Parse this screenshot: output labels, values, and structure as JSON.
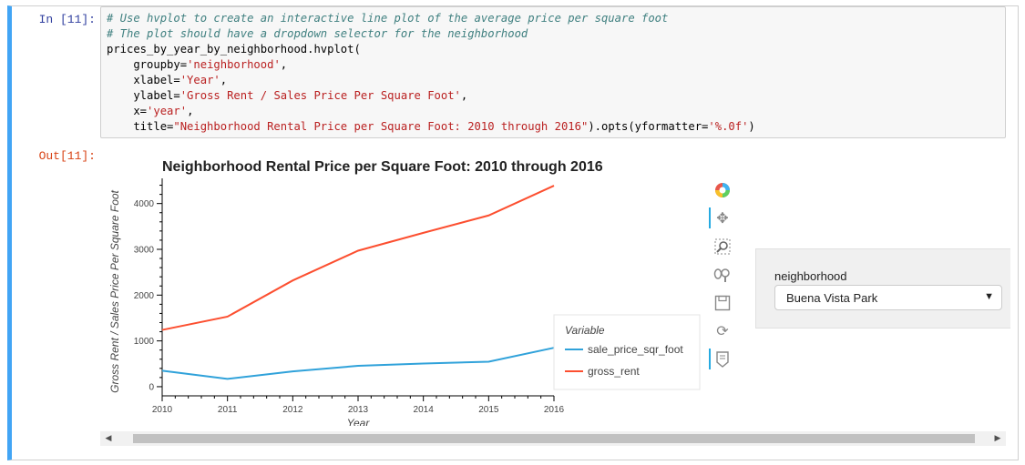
{
  "cell": {
    "in_prompt": "In [11]:",
    "out_prompt": "Out[11]:",
    "code_lines": [
      [
        {
          "t": "# Use hvplot to create an interactive line plot of the average price per square foot",
          "c": "cm-comment"
        }
      ],
      [
        {
          "t": "# The plot should have a dropdown selector for the neighborhood",
          "c": "cm-comment"
        }
      ],
      [
        {
          "t": "prices_by_year_by_neighborhood.hvplot(",
          "c": ""
        }
      ],
      [
        {
          "t": "    groupby=",
          "c": ""
        },
        {
          "t": "'neighborhood'",
          "c": "cm-string"
        },
        {
          "t": ",",
          "c": ""
        }
      ],
      [
        {
          "t": "    xlabel=",
          "c": ""
        },
        {
          "t": "'Year'",
          "c": "cm-string"
        },
        {
          "t": ",",
          "c": ""
        }
      ],
      [
        {
          "t": "    ylabel=",
          "c": ""
        },
        {
          "t": "'Gross Rent / Sales Price Per Square Foot'",
          "c": "cm-string"
        },
        {
          "t": ",",
          "c": ""
        }
      ],
      [
        {
          "t": "    x=",
          "c": ""
        },
        {
          "t": "'year'",
          "c": "cm-string"
        },
        {
          "t": ",",
          "c": ""
        }
      ],
      [
        {
          "t": "    title=",
          "c": ""
        },
        {
          "t": "\"Neighborhood Rental Price per Square Foot: 2010 through 2016\"",
          "c": "cm-string"
        },
        {
          "t": ").opts(yformatter=",
          "c": ""
        },
        {
          "t": "'%.0f'",
          "c": "cm-string"
        },
        {
          "t": ")",
          "c": ""
        }
      ]
    ]
  },
  "widget": {
    "label": "neighborhood",
    "selected": "Buena Vista Park"
  },
  "toolbar": {
    "icons": [
      "bokeh-logo-icon",
      "pan-icon",
      "box-zoom-icon",
      "wheel-zoom-icon",
      "save-icon",
      "reset-icon",
      "hover-icon"
    ]
  },
  "colors": {
    "sale_price_sqr_foot": "#30a2da",
    "gross_rent": "#fc4f30",
    "cell_border_accent": "#42a5f5"
  },
  "chart_data": {
    "type": "line",
    "title": "Neighborhood Rental Price per Square Foot: 2010 through 2016",
    "xlabel": "Year",
    "ylabel": "Gross Rent / Sales Price Per Square Foot",
    "x": [
      2010,
      2011,
      2012,
      2013,
      2014,
      2015,
      2016
    ],
    "xlim": [
      2010,
      2016
    ],
    "ylim": [
      -200,
      4550
    ],
    "yticks": [
      0,
      1000,
      2000,
      3000,
      4000
    ],
    "series": [
      {
        "name": "sale_price_sqr_foot",
        "values": [
          350,
          170,
          335,
          455,
          505,
          545,
          850
        ]
      },
      {
        "name": "gross_rent",
        "values": [
          1240,
          1530,
          2320,
          2970,
          3360,
          3740,
          4390
        ]
      }
    ],
    "legend": {
      "title": "Variable",
      "placement": "bottom-right"
    },
    "grid": false
  }
}
